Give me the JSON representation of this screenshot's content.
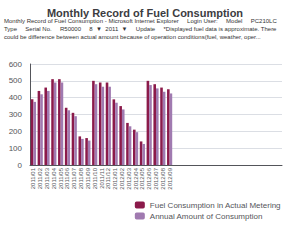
{
  "chart_data": {
    "type": "bar",
    "title": "Monthly Record of Fuel Consumption",
    "annotations": [
      "Monthly Record of Fuel Consumption - Microsoft Internet Explorer",
      "Login User:",
      "Model",
      "PC210LC",
      "Type",
      "Serial No.",
      "R50000",
      "8  ▼  2011  ▼",
      "Update",
      "*Displayed fuel data is approximate. There could be difference between actual amount because of operation conditions(fuel, weather, oper..."
    ],
    "categories": [
      "2011/01",
      "2011/02",
      "2011/03",
      "2011/04",
      "2011/05",
      "2011/06",
      "2011/07",
      "2011/08",
      "2011/09",
      "2011/10",
      "2011/11",
      "2011/12",
      "2012/01",
      "2012/02",
      "2012/03",
      "2012/04",
      "2012/05",
      "2012/06",
      "2012/07",
      "2012/08",
      "2012/09",
      null,
      null,
      null,
      null,
      null,
      null,
      null,
      null,
      null,
      null,
      null,
      null,
      null,
      null,
      null,
      null
    ],
    "series": [
      {
        "name": "Fuel Consumption in Actual Metering",
        "color": "#8B1A4A",
        "values": [
          390,
          440,
          460,
          510,
          510,
          340,
          310,
          170,
          160,
          500,
          490,
          490,
          390,
          350,
          250,
          210,
          140,
          500,
          480,
          460,
          450,
          null,
          null,
          null,
          null,
          null,
          null,
          null,
          null,
          null,
          null,
          null,
          null,
          null,
          null,
          null,
          null
        ]
      },
      {
        "name": "Annual Amount of Consumption",
        "color": "#A07AB0",
        "values": [
          375,
          420,
          440,
          490,
          490,
          325,
          290,
          155,
          145,
          480,
          465,
          465,
          370,
          330,
          230,
          195,
          125,
          475,
          455,
          435,
          425,
          null,
          null,
          null,
          null,
          null,
          null,
          null,
          null,
          null,
          null,
          null,
          null,
          null,
          null,
          null,
          null
        ]
      }
    ],
    "ylim": [
      0,
      600
    ],
    "yticks": [
      0,
      100,
      200,
      300,
      400,
      500,
      600
    ],
    "grid": true,
    "legend": "lower right"
  }
}
